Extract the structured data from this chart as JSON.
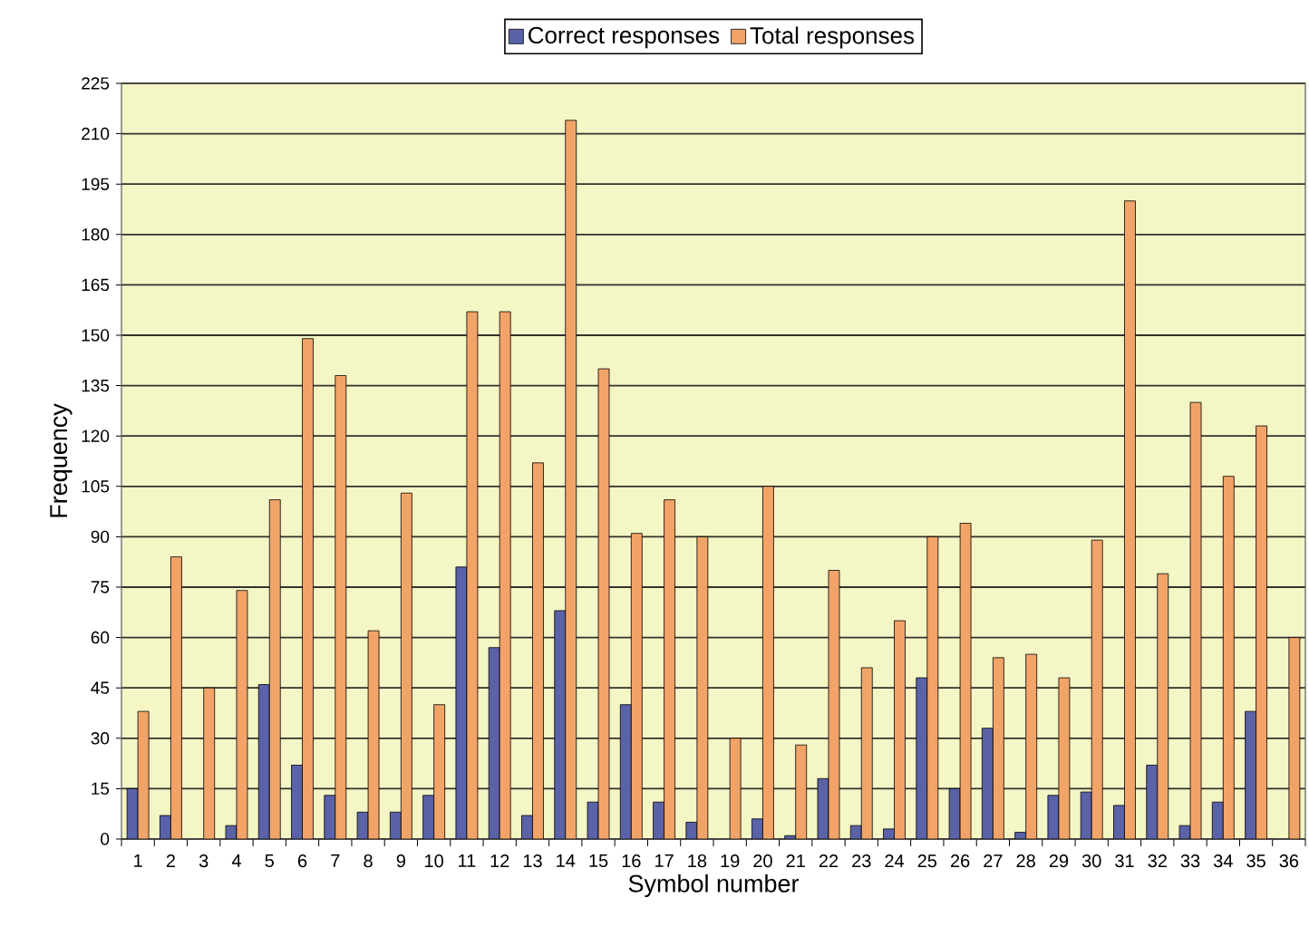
{
  "chart_data": {
    "type": "bar",
    "xlabel": "Symbol number",
    "ylabel": "Frequency",
    "categories": [
      "1",
      "2",
      "3",
      "4",
      "5",
      "6",
      "7",
      "8",
      "9",
      "10",
      "11",
      "12",
      "13",
      "14",
      "15",
      "16",
      "17",
      "18",
      "19",
      "20",
      "21",
      "22",
      "23",
      "24",
      "25",
      "26",
      "27",
      "28",
      "29",
      "30",
      "31",
      "32",
      "33",
      "34",
      "35",
      "36"
    ],
    "series": [
      {
        "name": "Correct responses",
        "color": "#5a62a8",
        "values": [
          15,
          7,
          null,
          4,
          46,
          22,
          13,
          8,
          8,
          13,
          81,
          57,
          7,
          68,
          11,
          40,
          11,
          5,
          null,
          6,
          1,
          18,
          4,
          3,
          48,
          15,
          33,
          2,
          13,
          14,
          10,
          22,
          4,
          11,
          38,
          null
        ]
      },
      {
        "name": "Total responses",
        "color": "#f2a468",
        "values": [
          38,
          84,
          45,
          74,
          101,
          149,
          138,
          62,
          103,
          40,
          157,
          157,
          112,
          214,
          140,
          91,
          101,
          90,
          30,
          105,
          28,
          80,
          51,
          65,
          90,
          94,
          54,
          55,
          48,
          89,
          190,
          79,
          130,
          108,
          123,
          60
        ]
      }
    ],
    "ylim": [
      0,
      225
    ],
    "yticks": [
      0,
      15,
      30,
      45,
      60,
      75,
      90,
      105,
      120,
      135,
      150,
      165,
      180,
      195,
      210,
      225
    ],
    "grid": "y",
    "legend": "top"
  }
}
